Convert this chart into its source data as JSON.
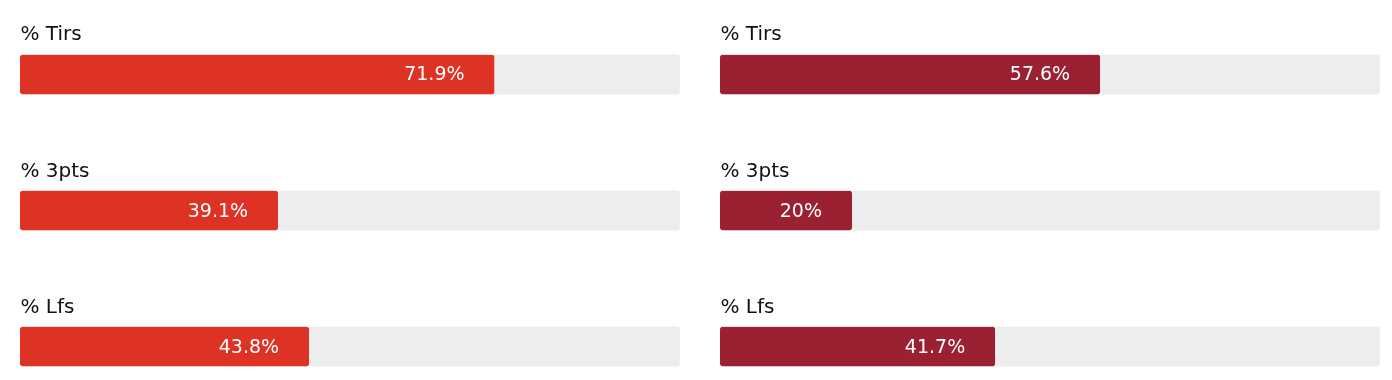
{
  "chart_data": [
    {
      "type": "bar",
      "orientation": "horizontal",
      "categories": [
        "% Tirs",
        "% 3pts",
        "% Lfs"
      ],
      "values": [
        71.9,
        39.1,
        43.8
      ],
      "value_labels": [
        "71.9%",
        "39.1%",
        "43.8%"
      ],
      "color": "#dd3224",
      "xlim": [
        0,
        100
      ],
      "tick_labels": "y"
    },
    {
      "type": "bar",
      "orientation": "horizontal",
      "categories": [
        "% Tirs",
        "% 3pts",
        "% Lfs"
      ],
      "values": [
        57.6,
        20,
        41.7
      ],
      "value_labels": [
        "57.6%",
        "20%",
        "41.7%"
      ],
      "color": "#9b2032",
      "xlim": [
        0,
        100
      ],
      "tick_labels": "y"
    }
  ]
}
